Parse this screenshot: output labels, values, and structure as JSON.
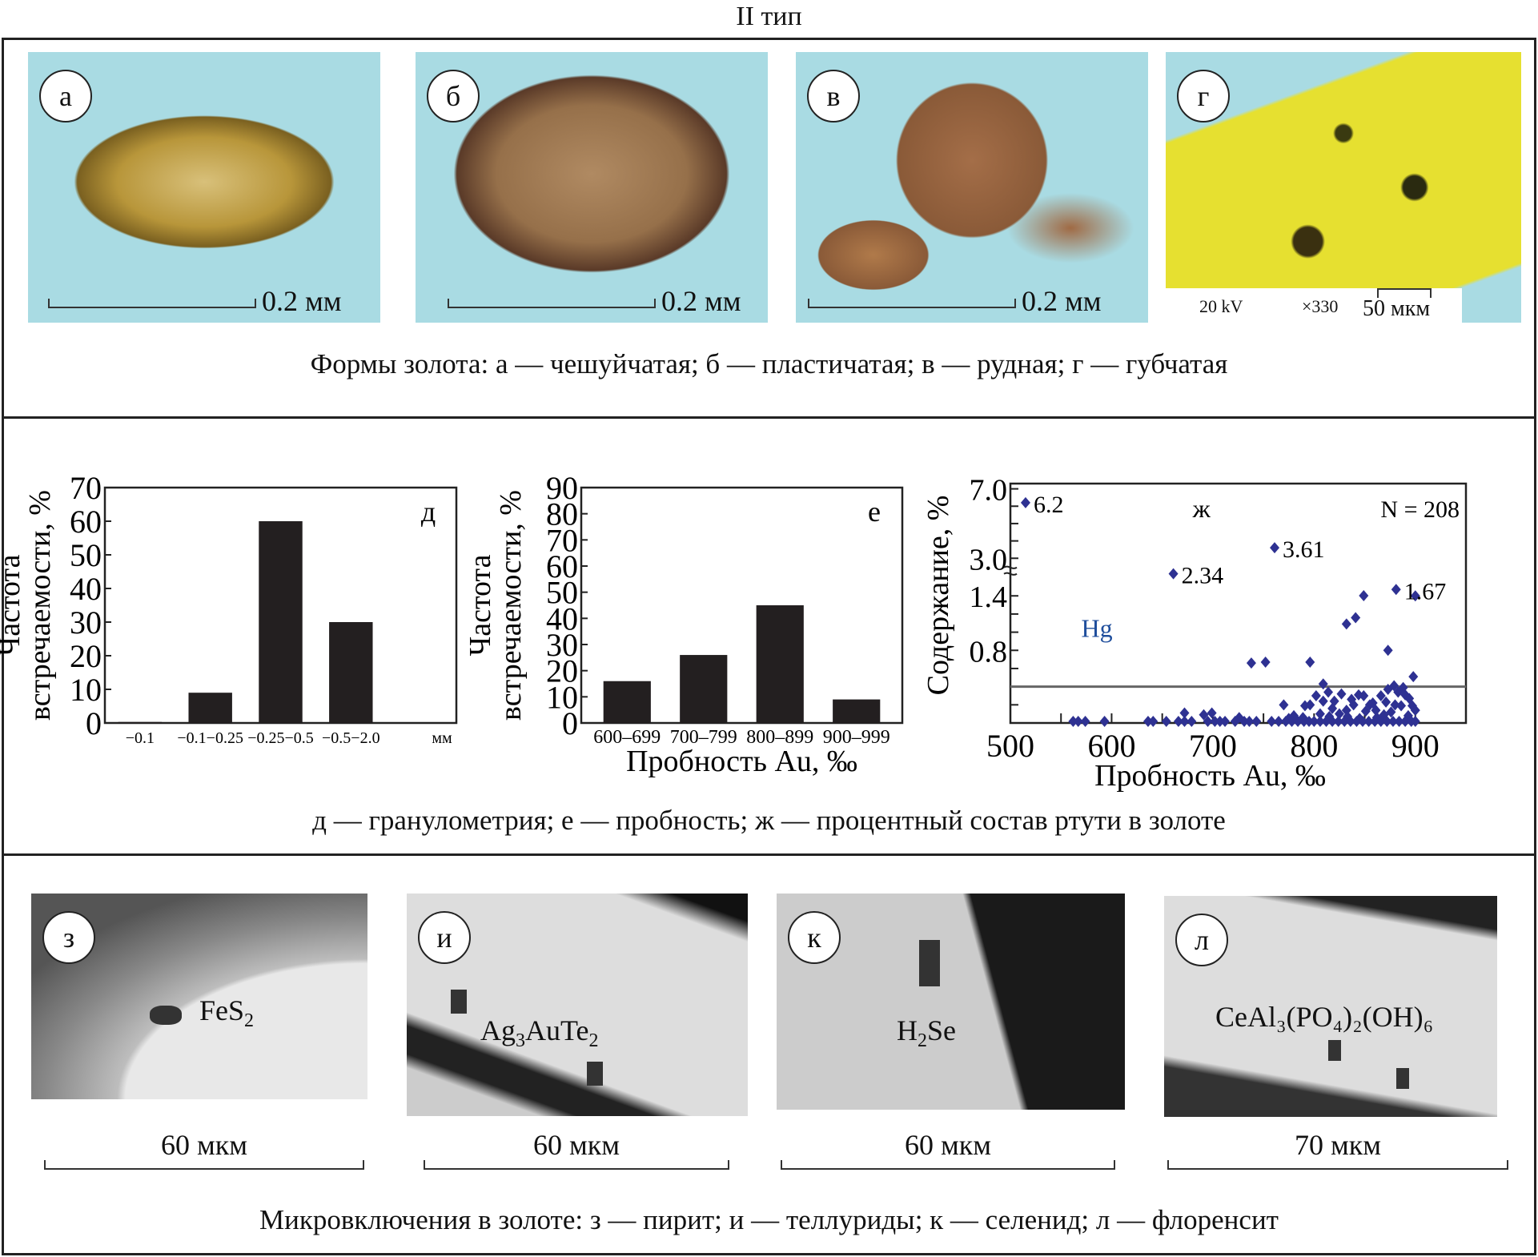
{
  "header": {
    "title": "II тип"
  },
  "forms": {
    "photos": [
      {
        "label": "а",
        "scale": "0.2 мм"
      },
      {
        "label": "б",
        "scale": "0.2 мм"
      },
      {
        "label": "в",
        "scale": "0.2 мм"
      },
      {
        "label": "г",
        "kv": "20 kV",
        "mag": "×330",
        "scale": "50 мкм"
      }
    ],
    "caption": "Формы золота: а — чешуйчатая; б — пластичатая; в — рудная; г — губчатая"
  },
  "charts_caption": "д — гранулометрия; е — пробность; ж — процентный состав ртути в золоте",
  "chart_data": [
    {
      "type": "bar",
      "panel": "д",
      "categories": [
        "−0.1",
        "−0.1−0.25",
        "−0.25−0.5",
        "−0.5−2.0"
      ],
      "values": [
        0.3,
        9,
        60,
        30
      ],
      "xunit": "мм",
      "ylabel": "Частота встречаемости, %",
      "ylim": [
        0,
        70
      ],
      "yticks": [
        0,
        10,
        20,
        30,
        40,
        50,
        60,
        70
      ],
      "color": "#231f20"
    },
    {
      "type": "bar",
      "panel": "е",
      "categories": [
        "600–699",
        "700–799",
        "800–899",
        "900–999"
      ],
      "values": [
        16,
        26,
        45,
        9
      ],
      "xlabel": "Пробность Au, ‰",
      "ylabel": "Частота встречаемости, %",
      "ylim": [
        0,
        90
      ],
      "yticks": [
        0,
        10,
        20,
        30,
        40,
        50,
        60,
        70,
        80,
        90
      ],
      "color": "#231f20"
    },
    {
      "type": "scatter",
      "panel": "ж",
      "series_label": "Hg",
      "n_label": "N = 208",
      "xlabel": "Пробность Au, ‰",
      "ylabel": "Содержание, %",
      "xlim": [
        500,
        950
      ],
      "xticks": [
        500,
        600,
        700,
        800,
        900
      ],
      "yticks": [
        "0.8",
        "1.4",
        "3.0",
        "7.0"
      ],
      "y_scale": "broken (linear 0–1.4, break, 3.0–7.0)",
      "reference_line": 0.4,
      "color": "#2e3192",
      "annotations": [
        {
          "x": 515,
          "y": 6.2,
          "text": "6.2"
        },
        {
          "x": 661,
          "y": 2.34,
          "text": "2.34"
        },
        {
          "x": 761,
          "y": 3.61,
          "text": "3.61"
        },
        {
          "x": 881,
          "y": 1.67,
          "text": "1.67"
        }
      ],
      "points": [
        [
          515,
          6.2
        ],
        [
          661,
          2.34
        ],
        [
          761,
          3.61
        ],
        [
          881,
          1.67
        ],
        [
          849,
          1.41
        ],
        [
          900,
          1.4
        ],
        [
          841,
          1.16
        ],
        [
          832,
          1.09
        ],
        [
          873,
          0.8
        ],
        [
          738,
          0.66
        ],
        [
          752,
          0.67
        ],
        [
          796,
          0.67
        ],
        [
          898,
          0.51
        ],
        [
          809,
          0.43
        ],
        [
          672,
          0.11
        ],
        [
          691,
          0.09
        ],
        [
          699,
          0.11
        ],
        [
          726,
          0.06
        ],
        [
          770,
          0.2
        ],
        [
          775,
          0.05
        ],
        [
          791,
          0.19
        ],
        [
          796,
          0.2
        ],
        [
          802,
          0.3
        ],
        [
          814,
          0.34
        ],
        [
          809,
          0.24
        ],
        [
          820,
          0.24
        ],
        [
          827,
          0.32
        ],
        [
          832,
          0.14
        ],
        [
          839,
          0.2
        ],
        [
          844,
          0.31
        ],
        [
          849,
          0.3
        ],
        [
          855,
          0.2
        ],
        [
          861,
          0.14
        ],
        [
          871,
          0.23
        ],
        [
          873,
          0.37
        ],
        [
          879,
          0.41
        ],
        [
          883,
          0.34
        ],
        [
          888,
          0.39
        ],
        [
          890,
          0.31
        ],
        [
          886,
          0.19
        ],
        [
          897,
          0.19
        ],
        [
          900,
          0.14
        ],
        [
          869,
          0.09
        ],
        [
          851,
          0.13
        ],
        [
          833,
          0.07
        ],
        [
          815,
          0.07
        ],
        [
          806,
          0.1
        ],
        [
          789,
          0.06
        ],
        [
          780,
          0.08
        ],
        [
          862,
          0.06
        ],
        [
          876,
          0.12
        ],
        [
          893,
          0.08
        ],
        [
          845,
          0.05
        ],
        [
          825,
          0.1
        ],
        [
          858,
          0.22
        ],
        [
          866,
          0.3
        ],
        [
          880,
          0.2
        ],
        [
          894,
          0.27
        ],
        [
          818,
          0.16
        ],
        [
          837,
          0.26
        ],
        [
          562,
          0
        ],
        [
          567,
          0
        ],
        [
          574,
          0
        ],
        [
          593,
          0
        ],
        [
          636,
          0
        ],
        [
          641,
          0
        ],
        [
          654,
          0
        ],
        [
          666,
          0
        ],
        [
          672,
          0
        ],
        [
          679,
          0
        ],
        [
          695,
          0
        ],
        [
          702,
          0
        ],
        [
          707,
          0
        ],
        [
          712,
          0
        ],
        [
          722,
          0
        ],
        [
          731,
          0
        ],
        [
          736,
          0
        ],
        [
          743,
          0
        ],
        [
          758,
          0
        ],
        [
          765,
          0
        ],
        [
          772,
          0
        ],
        [
          778,
          0
        ],
        [
          784,
          0
        ],
        [
          790,
          0
        ],
        [
          795,
          0
        ],
        [
          800,
          0
        ],
        [
          806,
          0
        ],
        [
          812,
          0
        ],
        [
          818,
          0
        ],
        [
          824,
          0
        ],
        [
          830,
          0
        ],
        [
          836,
          0
        ],
        [
          842,
          0
        ],
        [
          848,
          0
        ],
        [
          854,
          0
        ],
        [
          860,
          0
        ],
        [
          866,
          0
        ],
        [
          872,
          0
        ],
        [
          878,
          0
        ],
        [
          884,
          0
        ],
        [
          890,
          0
        ],
        [
          896,
          0
        ],
        [
          900,
          0
        ]
      ]
    }
  ],
  "inclusions": {
    "photos": [
      {
        "label": "з",
        "mineral": "FeS",
        "sub": "2",
        "scale": "60 мкм"
      },
      {
        "label": "и",
        "mineral": "Ag",
        "sub": "3",
        "mineral2": "AuTe",
        "sub2": "2",
        "scale": "60 мкм"
      },
      {
        "label": "к",
        "mineral": "H",
        "sub": "2",
        "mineral2": "Se",
        "scale": "60 мкм"
      },
      {
        "label": "л",
        "formula": "CeAl₃(PO₄)₂(OH)₆",
        "scale": "70 мкм"
      }
    ],
    "caption": "Микровключения в золоте: з — пирит; и — теллуриды; к — селенид; л — флоренсит"
  }
}
